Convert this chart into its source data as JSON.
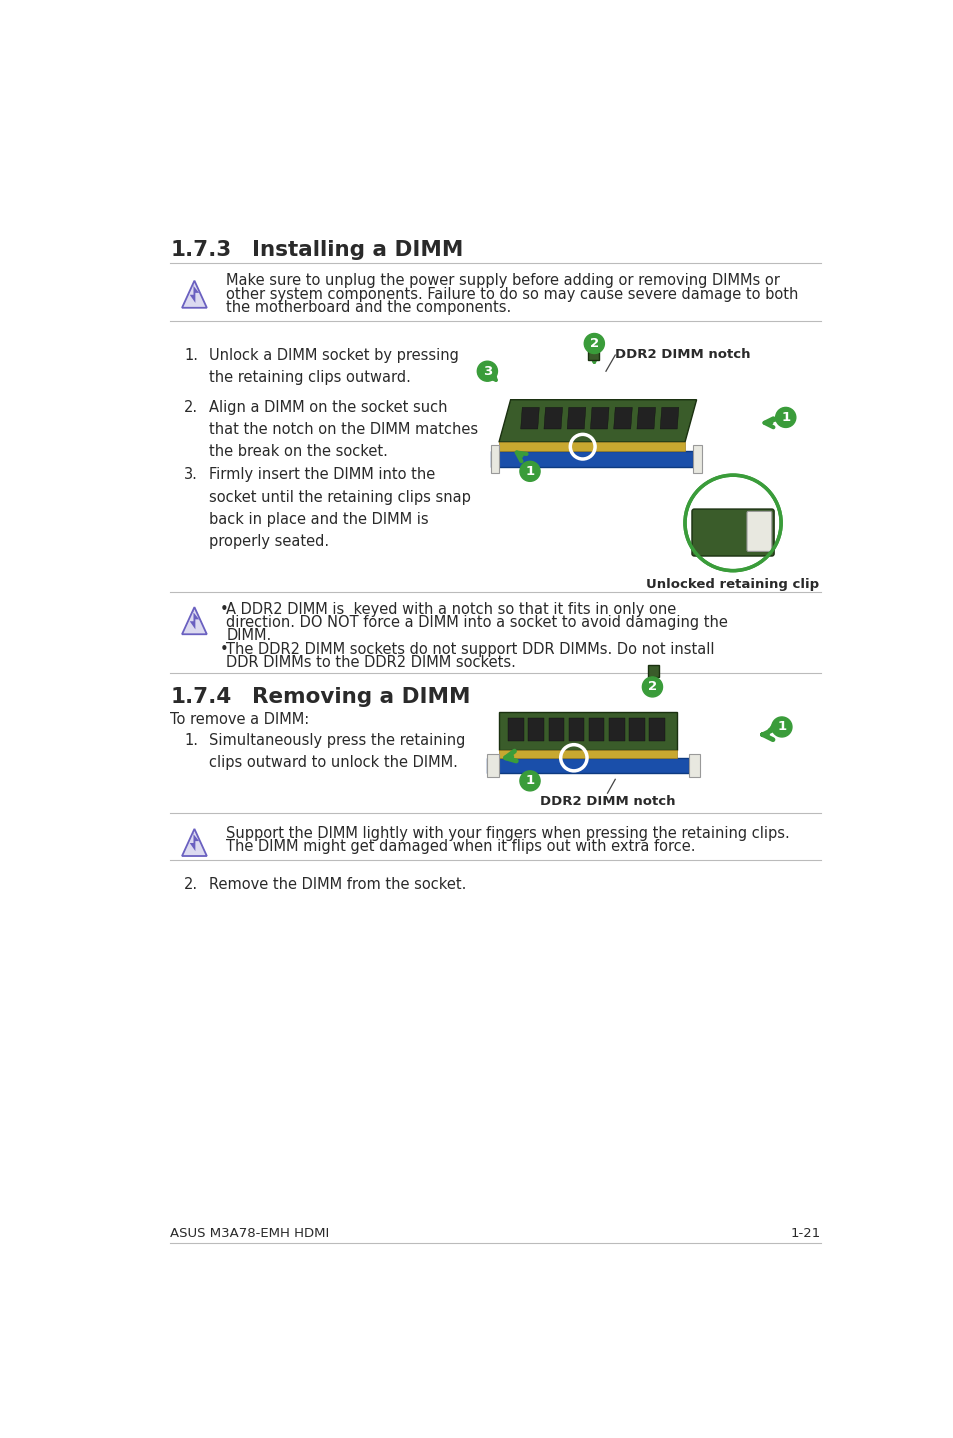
{
  "bg_color": "#ffffff",
  "page_title_left": "ASUS M3A78-EMH HDMI",
  "page_title_right": "1-21",
  "section_173_number": "1.7.3",
  "section_173_title": "Installing a DIMM",
  "section_174_number": "1.7.4",
  "section_174_title": "Removing a DIMM",
  "warning1_text_line1": "Make sure to unplug the power supply before adding or removing DIMMs or",
  "warning1_text_line2": "other system components. Failure to do so may cause severe damage to both",
  "warning1_text_line3": "the motherboard and the components.",
  "install_step1": "Unlock a DIMM socket by pressing\nthe retaining clips outward.",
  "install_step2": "Align a DIMM on the socket such\nthat the notch on the DIMM matches\nthe break on the socket.",
  "install_step3": "Firmly insert the DIMM into the\nsocket until the retaining clips snap\nback in place and the DIMM is\nproperly seated.",
  "note_bullet1_line1": "A DDR2 DIMM is  keyed with a notch so that it fits in only one",
  "note_bullet1_line2": "direction. DO NOT force a DIMM into a socket to avoid damaging the",
  "note_bullet1_line3": "DIMM.",
  "note_bullet2_line1": "The DDR2 DIMM sockets do not support DDR DIMMs. Do not install",
  "note_bullet2_line2": "DDR DIMMs to the DDR2 DIMM sockets.",
  "remove_intro": "To remove a DIMM:",
  "remove_step1": "Simultaneously press the retaining\nclips outward to unlock the DIMM.",
  "remove_step2": "Remove the DIMM from the socket.",
  "warning2_line1": "Support the DIMM lightly with your fingers when pressing the retaining clips.",
  "warning2_line2": "The DIMM might get damaged when it flips out with extra force.",
  "label_ddr2_install": "DDR2 DIMM notch",
  "label_unlocked": "Unlocked retaining clip",
  "label_ddr2_remove": "DDR2 DIMM notch",
  "green": "#3a9c3a",
  "dark_green_pcb": "#3a5c2a",
  "med_green_pcb": "#4a7a38",
  "blue_slot": "#1a4faa",
  "gold": "#c8a830",
  "chip_dark": "#222222",
  "white_clip": "#e8e8e0",
  "text_color": "#2a2a2a",
  "line_color": "#bbbbbb",
  "purple_icon": "#6a60c0",
  "purple_icon_fill": "#dcdaf0"
}
